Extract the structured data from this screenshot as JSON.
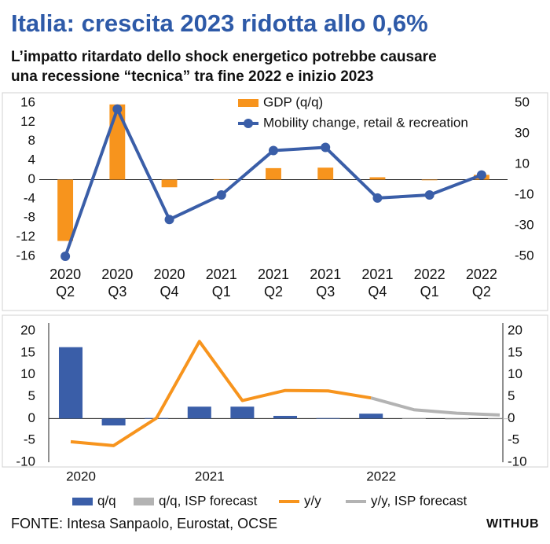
{
  "header": {
    "title": "Italia: crescita 2023 ridotta allo 0,6%",
    "subtitle": "L’impatto ritardato dello shock energetico potrebbe causare\nuna recessione “tecnica” tra fine 2022 e inizio 2023"
  },
  "chart_data": [
    {
      "type": "combo",
      "categories": [
        "2020\nQ2",
        "2020\nQ3",
        "2020\nQ4",
        "2021\nQ1",
        "2021\nQ2",
        "2021\nQ3",
        "2021\nQ4",
        "2022\nQ1",
        "2022\nQ2"
      ],
      "series": [
        {
          "name": "GDP (q/q)",
          "type": "bar",
          "color": "#f7941d",
          "values": [
            -12.8,
            15.7,
            -1.6,
            0.1,
            2.4,
            2.5,
            0.5,
            -0.1,
            1.0
          ]
        },
        {
          "name": "Mobility change, retail & recreation",
          "type": "line",
          "axis": "y2",
          "color": "#3a5ea8",
          "values": [
            -50,
            46,
            -26,
            -10,
            19,
            21,
            -12,
            -10,
            3
          ]
        }
      ],
      "ylim": [
        -16,
        16
      ],
      "yticks": [
        -16,
        -12,
        -8,
        -4,
        0,
        4,
        8,
        12,
        16
      ],
      "y2lim": [
        -50,
        50
      ],
      "y2ticks": [
        -50,
        -30,
        -10,
        10,
        30,
        50
      ],
      "legend": "top"
    },
    {
      "type": "combo",
      "categories": [
        "2020",
        null,
        null,
        "2021",
        null,
        null,
        null,
        "2022",
        null,
        null,
        null
      ],
      "series": [
        {
          "name": "q/q",
          "type": "bar",
          "color": "#3a5ea8",
          "values": [
            16.3,
            -1.6,
            0.1,
            2.7,
            2.7,
            0.6,
            0.1,
            1.1,
            null,
            null,
            null
          ]
        },
        {
          "name": "q/q, ISP forecast",
          "type": "bar",
          "color": "#b3b3b3",
          "values": [
            null,
            null,
            null,
            null,
            null,
            null,
            null,
            null,
            0.1,
            -0.2,
            -0.1
          ]
        },
        {
          "name": "y/y",
          "type": "line",
          "color": "#f7941d",
          "values": [
            -5.3,
            -6.2,
            0.1,
            17.6,
            4.1,
            6.4,
            6.3,
            4.7,
            null,
            null,
            null
          ]
        },
        {
          "name": "y/y, ISP forecast",
          "type": "line",
          "color": "#b3b3b3",
          "values": [
            null,
            null,
            null,
            null,
            null,
            null,
            null,
            4.7,
            2.0,
            1.2,
            0.8
          ]
        }
      ],
      "ylim": [
        -10,
        20
      ],
      "yticks": [
        -10,
        -5,
        0,
        5,
        10,
        15,
        20
      ],
      "y2lim": [
        -10,
        20
      ],
      "y2ticks": [
        -10,
        -5,
        0,
        5,
        10,
        15,
        20
      ],
      "legend": "bottom"
    }
  ],
  "source": "FONTE: Intesa Sanpaolo, Eurostat, OCSE",
  "logo": "WITHUB"
}
